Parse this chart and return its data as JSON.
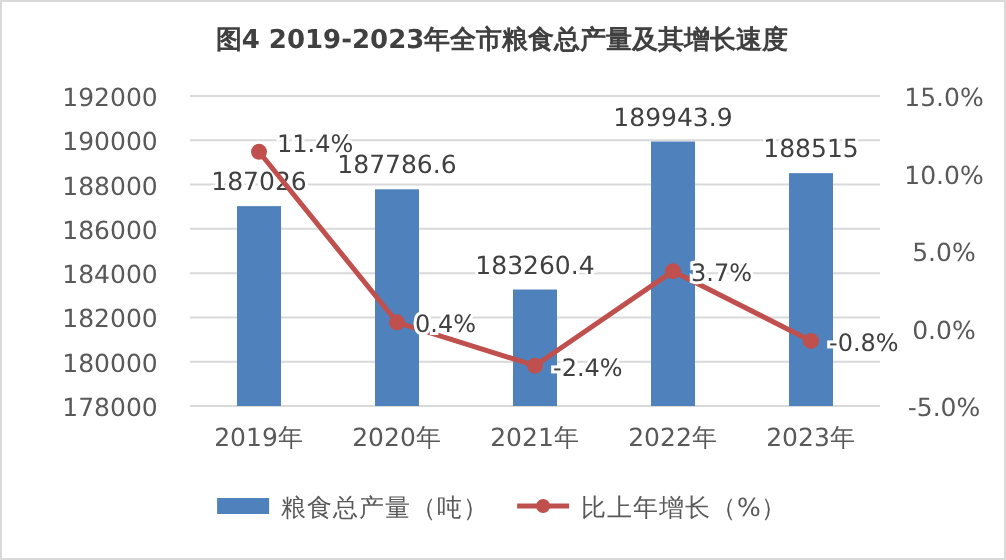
{
  "chart_data": {
    "type": "bar",
    "title": "图4 2019-2023年全市粮食总产量及其增长速度",
    "categories": [
      "2019年",
      "2020年",
      "2021年",
      "2022年",
      "2023年"
    ],
    "series": [
      {
        "name": "粮食总产量（吨）",
        "color": "#4f81bd",
        "values": [
          187026,
          187786.6,
          183260.4,
          189943.9,
          188515
        ],
        "value_labels": [
          "187026",
          "187786.6",
          "183260.4",
          "189943.9",
          "188515"
        ]
      },
      {
        "name": "比上年增长（%）",
        "type": "line",
        "axis": "y2",
        "color": "#c0504d",
        "marker": "circle",
        "values": [
          11.4,
          0.4,
          -2.4,
          3.7,
          -0.8
        ],
        "value_labels": [
          "11.4%",
          "0.4%",
          "-2.4%",
          "3.7%",
          "-0.8%"
        ]
      }
    ],
    "ylim": [
      178000,
      192000
    ],
    "yticks": [
      178000,
      180000,
      182000,
      184000,
      186000,
      188000,
      190000,
      192000
    ],
    "y2lim": [
      -5,
      15
    ],
    "y2ticks": [
      {
        "value": -5,
        "label": "-5.0%"
      },
      {
        "value": 0,
        "label": "0.0%"
      },
      {
        "value": 5,
        "label": "5.0%"
      },
      {
        "value": 10,
        "label": "10.0%"
      },
      {
        "value": 15,
        "label": "15.0%"
      }
    ],
    "grid": "y",
    "legend": "bottom"
  }
}
